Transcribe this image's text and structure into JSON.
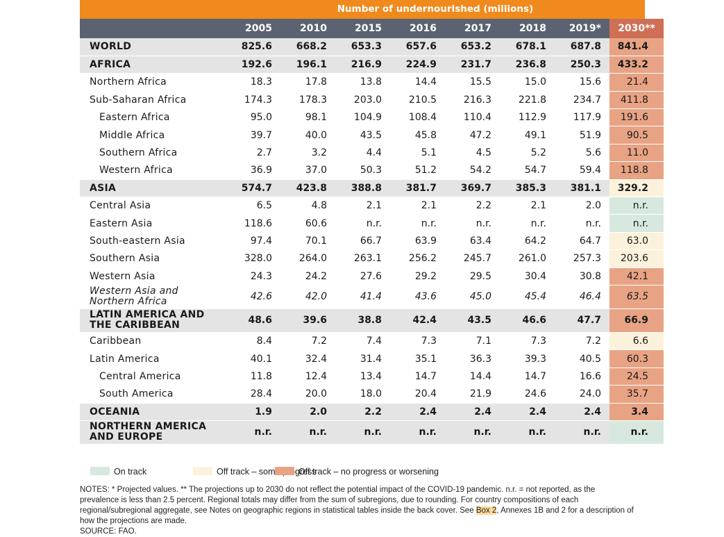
{
  "header": {
    "title": "Number of undernourished (millions)"
  },
  "columns": [
    "2005",
    "2010",
    "2015",
    "2016",
    "2017",
    "2018",
    "2019*",
    "2030**"
  ],
  "rows": [
    {
      "name": "WORLD",
      "values": [
        "825.6",
        "668.2",
        "653.3",
        "657.6",
        "653.2",
        "678.1",
        "687.8"
      ],
      "projection": "841.4",
      "status": "worsening",
      "style": "bold",
      "shaded": true
    },
    {
      "name": "AFRICA",
      "values": [
        "192.6",
        "196.1",
        "216.9",
        "224.9",
        "231.7",
        "236.8",
        "250.3"
      ],
      "projection": "433.2",
      "status": "worsening",
      "style": "bold",
      "shaded": true
    },
    {
      "name": "Northern Africa",
      "values": [
        "18.3",
        "17.8",
        "13.8",
        "14.4",
        "15.5",
        "15.0",
        "15.6"
      ],
      "projection": "21.4",
      "status": "worsening"
    },
    {
      "name": "Sub-Saharan Africa",
      "values": [
        "174.3",
        "178.3",
        "203.0",
        "210.5",
        "216.3",
        "221.8",
        "234.7"
      ],
      "projection": "411.8",
      "status": "worsening"
    },
    {
      "name": "Eastern Africa",
      "values": [
        "95.0",
        "98.1",
        "104.9",
        "108.4",
        "110.4",
        "112.9",
        "117.9"
      ],
      "projection": "191.6",
      "status": "worsening",
      "indent": true
    },
    {
      "name": "Middle Africa",
      "values": [
        "39.7",
        "40.0",
        "43.5",
        "45.8",
        "47.2",
        "49.1",
        "51.9"
      ],
      "projection": "90.5",
      "status": "worsening",
      "indent": true
    },
    {
      "name": "Southern Africa",
      "values": [
        "2.7",
        "3.2",
        "4.4",
        "5.1",
        "4.5",
        "5.2",
        "5.6"
      ],
      "projection": "11.0",
      "status": "worsening",
      "indent": true
    },
    {
      "name": "Western Africa",
      "values": [
        "36.9",
        "37.0",
        "50.3",
        "51.2",
        "54.2",
        "54.7",
        "59.4"
      ],
      "projection": "118.8",
      "status": "worsening",
      "indent": true
    },
    {
      "name": "ASIA",
      "values": [
        "574.7",
        "423.8",
        "388.8",
        "381.7",
        "369.7",
        "385.3",
        "381.1"
      ],
      "projection": "329.2",
      "status": "some",
      "style": "bold",
      "shaded": true
    },
    {
      "name": "Central Asia",
      "values": [
        "6.5",
        "4.8",
        "2.1",
        "2.1",
        "2.2",
        "2.1",
        "2.0"
      ],
      "projection": "n.r.",
      "status": "ontrack"
    },
    {
      "name": "Eastern Asia",
      "values": [
        "118.6",
        "60.6",
        "n.r.",
        "n.r.",
        "n.r.",
        "n.r.",
        "n.r."
      ],
      "projection": "n.r.",
      "status": "ontrack"
    },
    {
      "name": "South-eastern Asia",
      "values": [
        "97.4",
        "70.1",
        "66.7",
        "63.9",
        "63.4",
        "64.2",
        "64.7"
      ],
      "projection": "63.0",
      "status": "some"
    },
    {
      "name": "Southern Asia",
      "values": [
        "328.0",
        "264.0",
        "263.1",
        "256.2",
        "245.7",
        "261.0",
        "257.3"
      ],
      "projection": "203.6",
      "status": "some"
    },
    {
      "name": "Western Asia",
      "values": [
        "24.3",
        "24.2",
        "27.6",
        "29.2",
        "29.5",
        "30.4",
        "30.8"
      ],
      "projection": "42.1",
      "status": "worsening"
    },
    {
      "name": "Western Asia and Northern Africa",
      "values": [
        "42.6",
        "42.0",
        "41.4",
        "43.6",
        "45.0",
        "45.4",
        "46.4"
      ],
      "projection": "63.5",
      "status": "worsening",
      "style": "italic",
      "tall": true
    },
    {
      "name": "LATIN AMERICA AND THE CARIBBEAN",
      "values": [
        "48.6",
        "39.6",
        "38.8",
        "42.4",
        "43.5",
        "46.6",
        "47.7"
      ],
      "projection": "66.9",
      "status": "worsening",
      "style": "bold",
      "shaded": true,
      "tall": true
    },
    {
      "name": "Caribbean",
      "values": [
        "8.4",
        "7.2",
        "7.4",
        "7.3",
        "7.1",
        "7.3",
        "7.2"
      ],
      "projection": "6.6",
      "status": "some"
    },
    {
      "name": "Latin America",
      "values": [
        "40.1",
        "32.4",
        "31.4",
        "35.1",
        "36.3",
        "39.3",
        "40.5"
      ],
      "projection": "60.3",
      "status": "worsening"
    },
    {
      "name": "Central America",
      "values": [
        "11.8",
        "12.4",
        "13.4",
        "14.7",
        "14.4",
        "14.7",
        "16.6"
      ],
      "projection": "24.5",
      "status": "worsening",
      "indent": true
    },
    {
      "name": "South America",
      "values": [
        "28.4",
        "20.0",
        "18.0",
        "20.4",
        "21.9",
        "24.6",
        "24.0"
      ],
      "projection": "35.7",
      "status": "worsening",
      "indent": true
    },
    {
      "name": "OCEANIA",
      "values": [
        "1.9",
        "2.0",
        "2.2",
        "2.4",
        "2.4",
        "2.4",
        "2.4"
      ],
      "projection": "3.4",
      "status": "worsening",
      "style": "bold",
      "shaded": true
    },
    {
      "name": "NORTHERN AMERICA AND EUROPE",
      "values": [
        "n.r.",
        "n.r.",
        "n.r.",
        "n.r.",
        "n.r.",
        "n.r.",
        "n.r."
      ],
      "projection": "n.r.",
      "status": "ontrack",
      "style": "bold",
      "shaded": true,
      "tall": true
    }
  ],
  "legend": [
    {
      "label": "On track",
      "color": "#d7e9df"
    },
    {
      "label": "Off track – some progress",
      "color": "#fcf2dc"
    },
    {
      "label": "Off track – no progress or worsening",
      "color": "#e8a384"
    }
  ],
  "notes": {
    "part1": "NOTES: * Projected values. ** The projections up to 2030 do not reflect the potential impact of the COVID-19 pandemic. n.r. = not reported, as the prevalence is less than 2.5 percent. Regional totals may differ from the sum of subregions, due to rounding. For country compositions of each regional/subregional aggregate, see Notes on geographic regions in statistical tables inside the back cover. See ",
    "box_link": "Box 2",
    "part2": ", Annexes 1B and 2 for a description of how the projections are made.",
    "source": "SOURCE: FAO."
  },
  "colors": {
    "header_orange": "#f08a1c",
    "header_gray": "#5b6271",
    "worsening": "#e8a384",
    "some": "#fcf2dc",
    "ontrack": "#d7e9df"
  }
}
